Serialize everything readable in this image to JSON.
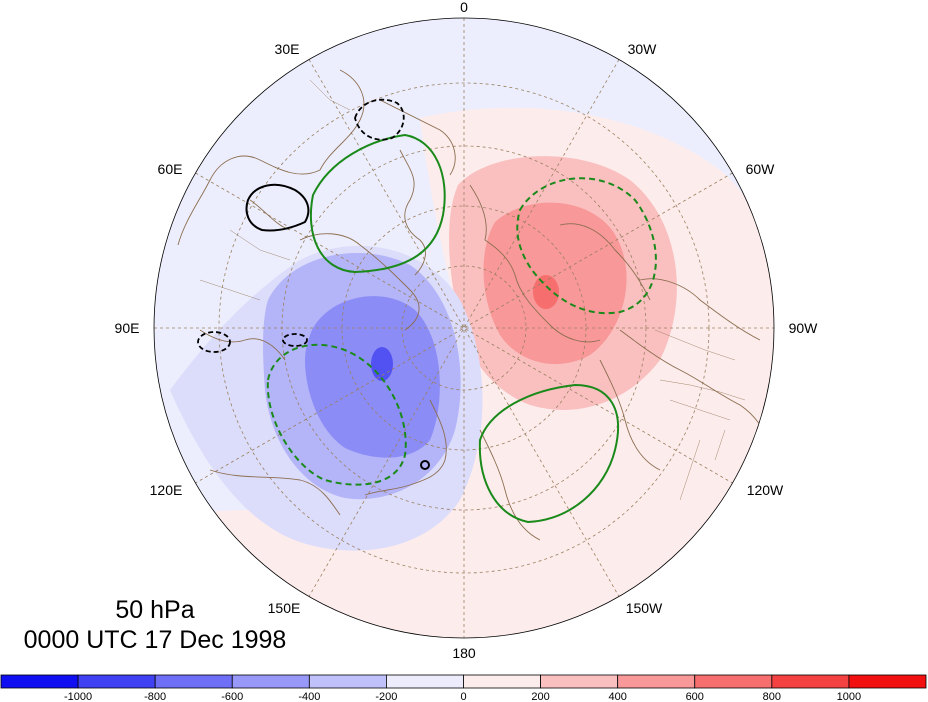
{
  "map": {
    "projection": "polar stereographic (north pole)",
    "longitude_labels": [
      {
        "text": "0",
        "lon": 0
      },
      {
        "text": "30W",
        "lon": -30
      },
      {
        "text": "60W",
        "lon": -60
      },
      {
        "text": "90W",
        "lon": -90
      },
      {
        "text": "120W",
        "lon": -120
      },
      {
        "text": "150W",
        "lon": -150
      },
      {
        "text": "180",
        "lon": 180
      },
      {
        "text": "150E",
        "lon": 150
      },
      {
        "text": "120E",
        "lon": 120
      },
      {
        "text": "90E",
        "lon": 90
      },
      {
        "text": "60E",
        "lon": 60
      },
      {
        "text": "30E",
        "lon": 30
      }
    ],
    "shading": {
      "positive_center": "Greenland / Canadian Arctic",
      "negative_center": "Siberia / East Asia"
    },
    "colors": {
      "background": "#e9ebfd",
      "coast": "#8c6e50",
      "grid": "#9a8160",
      "green_contour": "#1a8a1a",
      "black_contour": "#000000"
    }
  },
  "title": {
    "level": "50 hPa",
    "time": "0000 UTC 17 Dec 1998"
  },
  "colorbar": {
    "ticks": [
      "-1000",
      "-800",
      "-600",
      "-400",
      "-200",
      "0",
      "200",
      "400",
      "600",
      "800",
      "1000"
    ],
    "colors": [
      "#0f0ff2",
      "#4141f4",
      "#6e6ef6",
      "#9898f8",
      "#c0c0fa",
      "#ececfd",
      "#fdecec",
      "#fac0c0",
      "#f89898",
      "#f66e6e",
      "#f44141",
      "#f20f0f"
    ]
  }
}
